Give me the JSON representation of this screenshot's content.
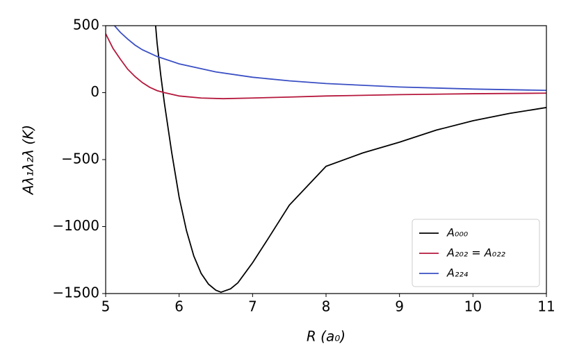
{
  "chart_data": {
    "type": "line",
    "xlabel": "R (a₀)",
    "ylabel": "Aλ₁λ₂λ (K)",
    "xlim": [
      5,
      11
    ],
    "xticks": [
      5,
      6,
      7,
      8,
      9,
      10,
      11
    ],
    "ylim": [
      -1500,
      500
    ],
    "yticks": [
      {
        "value": -1500,
        "label": "−1500"
      },
      {
        "value": -1000,
        "label": "−1000"
      },
      {
        "value": -500,
        "label": "−500"
      },
      0,
      500
    ],
    "legend": "lower right",
    "series": [
      {
        "name": "A₀₀₀",
        "color": "#000000",
        "x": [
          5.68,
          5.7,
          5.75,
          5.8,
          5.9,
          6.0,
          6.1,
          6.2,
          6.3,
          6.4,
          6.5,
          6.57,
          6.7,
          6.8,
          7.0,
          7.2,
          7.5,
          8.0,
          8.5,
          9.0,
          9.5,
          10.0,
          10.5,
          11.0
        ],
        "values": [
          500,
          370,
          130,
          -80,
          -450,
          -780,
          -1030,
          -1220,
          -1350,
          -1430,
          -1475,
          -1490,
          -1465,
          -1420,
          -1270,
          -1100,
          -840,
          -550,
          -450,
          -370,
          -280,
          -210,
          -155,
          -111
        ]
      },
      {
        "name": "A₂₀₂ = A₀₂₂",
        "color": "#b5173c",
        "x": [
          5.0,
          5.1,
          5.2,
          5.3,
          5.4,
          5.5,
          5.6,
          5.7,
          5.8,
          6.0,
          6.3,
          6.6,
          7.0,
          7.5,
          8.0,
          9.0,
          10.0,
          11.0
        ],
        "values": [
          440,
          330,
          250,
          175,
          120,
          75,
          40,
          15,
          0,
          -25,
          -40,
          -45,
          -40,
          -33,
          -25,
          -15,
          -8,
          -4
        ]
      },
      {
        "name": "A₂₂₄",
        "color": "#3a4fc4",
        "x": [
          5.12,
          5.2,
          5.3,
          5.4,
          5.5,
          5.7,
          6.0,
          6.5,
          7.0,
          7.5,
          8.0,
          9.0,
          10.0,
          11.0
        ],
        "values": [
          500,
          450,
          400,
          355,
          320,
          270,
          215,
          155,
          115,
          88,
          68,
          42,
          27,
          17
        ]
      }
    ]
  }
}
